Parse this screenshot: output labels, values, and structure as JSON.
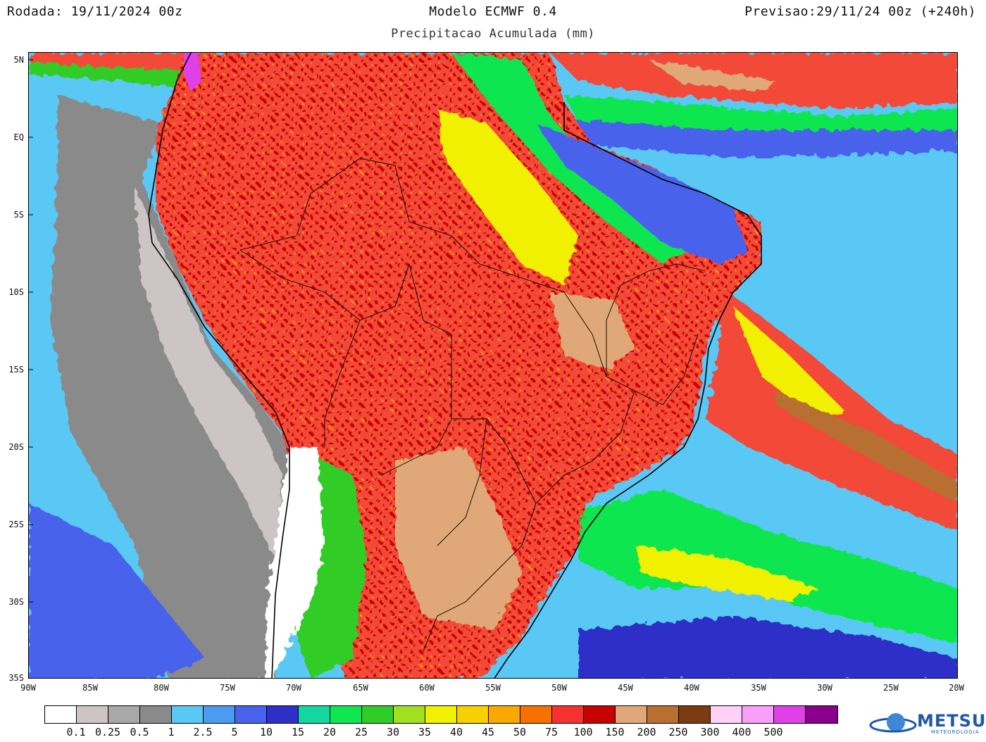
{
  "header": {
    "run": "Rodada: 19/11/2024 00z",
    "model": "Modelo ECMWF 0.4",
    "subtitle": "Precipitacao Acumulada (mm)",
    "valid": "Previsao:29/11/24 00z (+240h)"
  },
  "map": {
    "lat_labels": [
      "5N",
      "EQ",
      "5S",
      "10S",
      "15S",
      "20S",
      "25S",
      "30S",
      "35S"
    ],
    "lon_labels": [
      "90W",
      "85W",
      "80W",
      "75W",
      "70W",
      "65W",
      "60W",
      "55W",
      "50W",
      "45W",
      "40W",
      "35W",
      "30W",
      "25W",
      "20W"
    ],
    "field": "precipitation",
    "lat_range": [
      "35S",
      "5.5N"
    ],
    "lon_range": [
      "90W",
      "20W"
    ]
  },
  "colorbar": {
    "colors": [
      "#ffffff",
      "#cdc5c5",
      "#a8a8a8",
      "#8a8a8a",
      "#5ac8f5",
      "#4b9cf0",
      "#4a62ec",
      "#2e2ec8",
      "#12d8a0",
      "#10e650",
      "#30cc28",
      "#a0e020",
      "#f0f000",
      "#f8d000",
      "#f8a800",
      "#f87000",
      "#f83030",
      "#c80000",
      "#e0a878",
      "#b87030",
      "#7a3c10",
      "#ffd0f8",
      "#f8a0f8",
      "#e040e8",
      "#8a008a"
    ],
    "labels": [
      "0.1",
      "0.25",
      "0.5",
      "1",
      "2.5",
      "5",
      "10",
      "15",
      "20",
      "25",
      "30",
      "35",
      "40",
      "45",
      "50",
      "75",
      "100",
      "150",
      "200",
      "250",
      "300",
      "400",
      "500"
    ]
  },
  "logo": {
    "name": "METSUL",
    "tagline": "METEOROLOGIA",
    "icon": "globe-logo-icon"
  }
}
